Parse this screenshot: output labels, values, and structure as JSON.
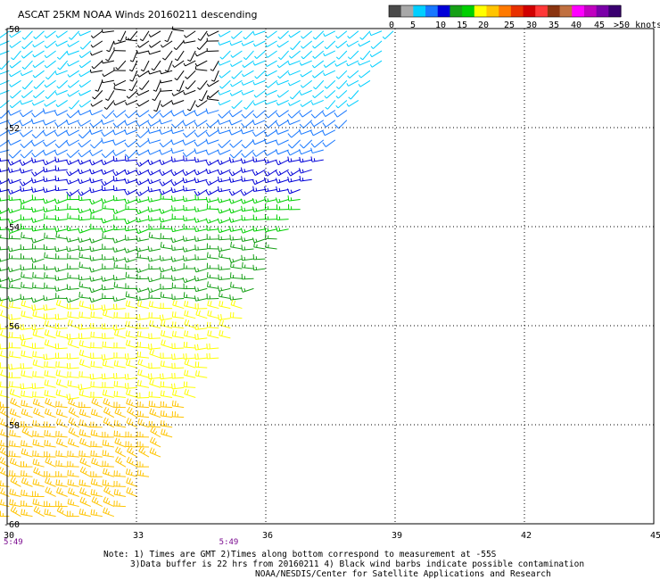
{
  "title": "ASCAT 25KM NOAA Winds 20160211 descending",
  "colorbar": {
    "ticks": [
      "0",
      "5",
      "10",
      "15",
      "20",
      "25",
      "30",
      "35",
      "40",
      "45",
      ">50 knots"
    ],
    "colors": [
      "#4a4a4a",
      "#a8a8a8",
      "#00cfff",
      "#1878ff",
      "#0000d8",
      "#16a016",
      "#00d000",
      "#ffff00",
      "#ffc400",
      "#ff7a00",
      "#e83000",
      "#d00000",
      "#ff3838",
      "#8a3410",
      "#c07040",
      "#ff00ff",
      "#c000c0",
      "#7a00a8",
      "#3a0070"
    ]
  },
  "note": {
    "line1": "Note: 1) Times are GMT 2)Times along bottom correspond to measurement at -55S",
    "line2": "3)Data buffer is 22 hrs from 20160211 4) Black wind barbs indicate possible contamination",
    "line3": "NOAA/NESDIS/Center for Satellite Applications and Research"
  },
  "chart_data": {
    "type": "wind_barb_map",
    "title": "ASCAT 25KM NOAA Winds 20160211 descending",
    "xlim": [
      30,
      45
    ],
    "ylim": [
      -60,
      -50
    ],
    "x_ticks": [
      30,
      33,
      36,
      39,
      42,
      45
    ],
    "y_ticks": [
      -50,
      -52,
      -54,
      -56,
      -58,
      -60
    ],
    "x_tick_labels": [
      "30",
      "33",
      "36",
      "39",
      "42",
      "45"
    ],
    "y_tick_labels": [
      "-50",
      "-52",
      "-54",
      "-56",
      "-58",
      "-60"
    ],
    "times": [
      {
        "lon": 30,
        "label": "5:49"
      },
      {
        "lon": 35,
        "label": "5:49"
      }
    ],
    "grid": true,
    "swath_edge": [
      [
        39.1,
        -50
      ],
      [
        36.6,
        -54
      ],
      [
        35.0,
        -56.6
      ],
      [
        33.4,
        -59
      ],
      [
        32.6,
        -60
      ]
    ],
    "wind_bands": [
      {
        "lat_from": -50,
        "lat_to": -51.5,
        "speed_kt": 8,
        "dir_deg": 235,
        "color": "#00cfff"
      },
      {
        "lat_from": -51.5,
        "lat_to": -52.6,
        "speed_kt": 12,
        "dir_deg": 240,
        "color": "#1878ff"
      },
      {
        "lat_from": -52.6,
        "lat_to": -53.4,
        "speed_kt": 16,
        "dir_deg": 250,
        "color": "#0000d8"
      },
      {
        "lat_from": -53.4,
        "lat_to": -54.2,
        "speed_kt": 19,
        "dir_deg": 260,
        "color": "#00d000"
      },
      {
        "lat_from": -54.2,
        "lat_to": -55.6,
        "speed_kt": 19,
        "dir_deg": 265,
        "color": "#16a016"
      },
      {
        "lat_from": -55.6,
        "lat_to": -57.5,
        "speed_kt": 23,
        "dir_deg": 275,
        "color": "#ffff00"
      },
      {
        "lat_from": -57.5,
        "lat_to": -60,
        "speed_kt": 27,
        "dir_deg": 285,
        "color": "#ffc400"
      }
    ],
    "contaminated_region": {
      "lon": [
        32,
        35
      ],
      "lat": [
        -50,
        -51.6
      ],
      "color": "#000000"
    }
  }
}
